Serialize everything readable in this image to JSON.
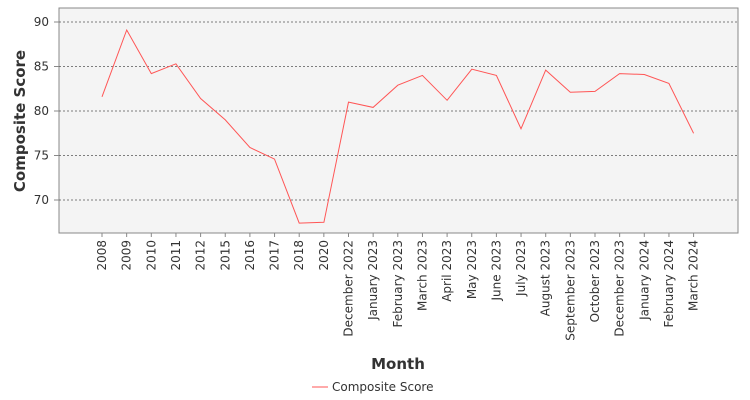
{
  "chart_data": {
    "type": "line",
    "xlabel": "Month",
    "ylabel": "Composite Score",
    "ylim": [
      66,
      91
    ],
    "yticks": [
      70,
      75,
      80,
      85,
      90
    ],
    "grid": true,
    "legend_position": "bottom-center",
    "categories": [
      "2008",
      "2009",
      "2010",
      "2011",
      "2012",
      "2015",
      "2016",
      "2017",
      "2018",
      "2020",
      "December 2022",
      "January 2023",
      "February 2023",
      "March 2023",
      "April 2023",
      "May 2023",
      "June 2023",
      "July 2023",
      "August 2023",
      "September 2023",
      "October 2023",
      "December 2023",
      "January 2024",
      "February 2024",
      "March 2024"
    ],
    "series": [
      {
        "name": "Composite Score",
        "color": "#ff5555",
        "values": [
          81.6,
          89.1,
          84.2,
          85.3,
          81.4,
          79.0,
          75.9,
          74.6,
          67.4,
          67.5,
          81.0,
          80.4,
          82.9,
          84.0,
          81.2,
          84.7,
          84.0,
          78.0,
          84.6,
          82.1,
          82.2,
          84.2,
          84.1,
          83.1,
          77.5
        ]
      }
    ]
  }
}
